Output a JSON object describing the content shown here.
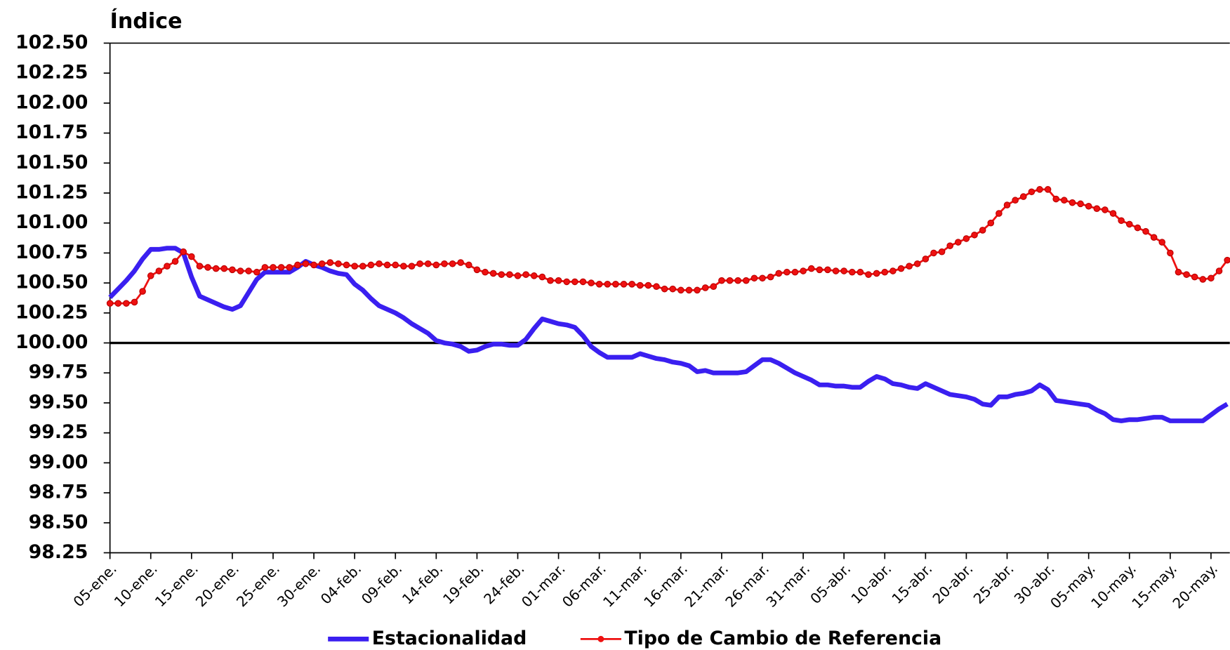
{
  "chart_data": {
    "type": "line",
    "y_label": "Índice",
    "categories": [
      "05-ene.",
      null,
      null,
      null,
      null,
      "10-ene.",
      null,
      null,
      null,
      null,
      "15-ene.",
      null,
      null,
      null,
      null,
      "20-ene.",
      null,
      null,
      null,
      null,
      "25-ene.",
      null,
      null,
      null,
      null,
      "30-ene.",
      null,
      null,
      null,
      null,
      "04-feb.",
      null,
      null,
      null,
      null,
      "09-feb.",
      null,
      null,
      null,
      null,
      "14-feb.",
      null,
      null,
      null,
      null,
      "19-feb.",
      null,
      null,
      null,
      null,
      "24-feb.",
      null,
      null,
      null,
      null,
      "01-mar.",
      null,
      null,
      null,
      null,
      "06-mar.",
      null,
      null,
      null,
      null,
      "11-mar.",
      null,
      null,
      null,
      null,
      "16-mar.",
      null,
      null,
      null,
      null,
      "21-mar.",
      null,
      null,
      null,
      null,
      "26-mar.",
      null,
      null,
      null,
      null,
      "31-mar.",
      null,
      null,
      null,
      null,
      "05-abr.",
      null,
      null,
      null,
      null,
      "10-abr.",
      null,
      null,
      null,
      null,
      "15-abr.",
      null,
      null,
      null,
      null,
      "20-abr.",
      null,
      null,
      null,
      null,
      "25-abr.",
      null,
      null,
      null,
      null,
      "30-abr.",
      null,
      null,
      null,
      null,
      "05-may.",
      null,
      null,
      null,
      null,
      "10-may.",
      null,
      null,
      null,
      null,
      "15-may.",
      null,
      null,
      null,
      null,
      "20-may.",
      null,
      null
    ],
    "series": [
      {
        "name": "Estacionalidad",
        "color": "#3a1ff0",
        "markers": false,
        "values": [
          100.38,
          100.45,
          100.52,
          100.6,
          100.7,
          100.78,
          100.78,
          100.79,
          100.79,
          100.75,
          100.55,
          100.39,
          100.36,
          100.33,
          100.3,
          100.28,
          100.31,
          100.42,
          100.53,
          100.59,
          100.59,
          100.59,
          100.59,
          100.63,
          100.68,
          100.65,
          100.63,
          100.6,
          100.58,
          100.57,
          100.49,
          100.44,
          100.37,
          100.31,
          100.28,
          100.25,
          100.21,
          100.16,
          100.12,
          100.08,
          100.02,
          100.0,
          99.99,
          99.97,
          99.93,
          99.94,
          99.97,
          99.99,
          99.99,
          99.98,
          99.98,
          100.03,
          100.12,
          100.2,
          100.18,
          100.16,
          100.15,
          100.13,
          100.06,
          99.97,
          99.92,
          99.88,
          99.88,
          99.88,
          99.88,
          99.91,
          99.89,
          99.87,
          99.86,
          99.84,
          99.83,
          99.81,
          99.76,
          99.77,
          99.75,
          99.75,
          99.75,
          99.75,
          99.76,
          99.81,
          99.86,
          99.86,
          99.83,
          99.79,
          99.75,
          99.72,
          99.69,
          99.65,
          99.65,
          99.64,
          99.64,
          99.63,
          99.63,
          99.68,
          99.72,
          99.7,
          99.66,
          99.65,
          99.63,
          99.62,
          99.66,
          99.63,
          99.6,
          99.57,
          99.56,
          99.55,
          99.53,
          99.49,
          99.48,
          99.55,
          99.55,
          99.57,
          99.58,
          99.6,
          99.65,
          99.61,
          99.52,
          99.51,
          99.5,
          99.49,
          99.48,
          99.44,
          99.41,
          99.36,
          99.35,
          99.36,
          99.36,
          99.37,
          99.38,
          99.38,
          99.35,
          99.35,
          99.35,
          99.35,
          99.35,
          99.4,
          99.45,
          99.49
        ]
      },
      {
        "name": "Tipo de Cambio de Referencia",
        "color": "#ee1111",
        "markers": true,
        "values": [
          100.33,
          100.33,
          100.33,
          100.34,
          100.43,
          100.56,
          100.6,
          100.64,
          100.68,
          100.76,
          100.72,
          100.64,
          100.63,
          100.62,
          100.62,
          100.61,
          100.6,
          100.6,
          100.59,
          100.63,
          100.63,
          100.63,
          100.63,
          100.65,
          100.66,
          100.65,
          100.66,
          100.67,
          100.66,
          100.65,
          100.64,
          100.64,
          100.65,
          100.66,
          100.65,
          100.65,
          100.64,
          100.64,
          100.66,
          100.66,
          100.65,
          100.66,
          100.66,
          100.67,
          100.65,
          100.61,
          100.59,
          100.58,
          100.57,
          100.57,
          100.56,
          100.57,
          100.56,
          100.55,
          100.52,
          100.52,
          100.51,
          100.51,
          100.51,
          100.5,
          100.49,
          100.49,
          100.49,
          100.49,
          100.49,
          100.48,
          100.48,
          100.47,
          100.45,
          100.45,
          100.44,
          100.44,
          100.44,
          100.46,
          100.47,
          100.52,
          100.52,
          100.52,
          100.52,
          100.54,
          100.54,
          100.55,
          100.58,
          100.59,
          100.59,
          100.6,
          100.62,
          100.61,
          100.61,
          100.6,
          100.6,
          100.59,
          100.59,
          100.57,
          100.58,
          100.59,
          100.6,
          100.62,
          100.64,
          100.66,
          100.7,
          100.75,
          100.76,
          100.81,
          100.84,
          100.87,
          100.9,
          100.94,
          101.0,
          101.08,
          101.15,
          101.19,
          101.22,
          101.26,
          101.28,
          101.28,
          101.2,
          101.19,
          101.17,
          101.16,
          101.14,
          101.12,
          101.11,
          101.08,
          101.02,
          100.99,
          100.96,
          100.93,
          100.88,
          100.84,
          100.75,
          100.59,
          100.57,
          100.55,
          100.53,
          100.54,
          100.6,
          100.69
        ]
      }
    ],
    "ylim": [
      98.25,
      102.5
    ],
    "yticks": [
      {
        "value": 98.25,
        "label": "98.25"
      },
      {
        "value": 98.5,
        "label": "98.50"
      },
      {
        "value": 98.75,
        "label": "98.75"
      },
      {
        "value": 99,
        "label": "99.00"
      },
      {
        "value": 99.25,
        "label": "99.25"
      },
      {
        "value": 99.5,
        "label": "99.50"
      },
      {
        "value": 99.75,
        "label": "99.75"
      },
      {
        "value": 100,
        "label": "100.00"
      },
      {
        "value": 100.25,
        "label": "100.25"
      },
      {
        "value": 100.5,
        "label": "100.50"
      },
      {
        "value": 100.75,
        "label": "100.75"
      },
      {
        "value": 101,
        "label": "101.00"
      },
      {
        "value": 101.25,
        "label": "101.25"
      },
      {
        "value": 101.5,
        "label": "101.50"
      },
      {
        "value": 101.75,
        "label": "101.75"
      },
      {
        "value": 102,
        "label": "102.00"
      },
      {
        "value": 102.25,
        "label": "102.25"
      },
      {
        "value": 102.5,
        "label": "102.50"
      }
    ],
    "reference_line": 100,
    "grid": false,
    "legend": "bottom"
  }
}
